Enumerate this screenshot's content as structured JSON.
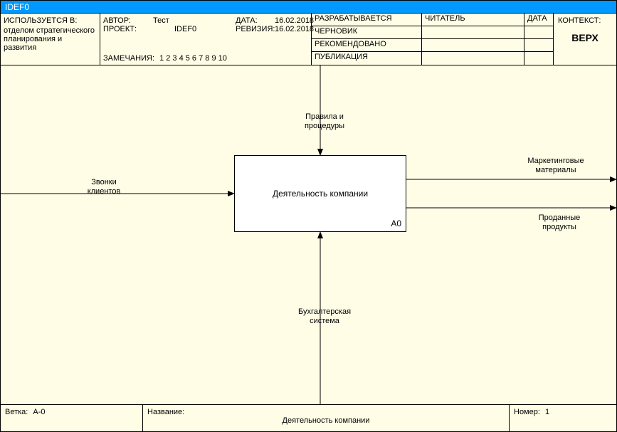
{
  "titlebar": "IDEF0",
  "header": {
    "used_at_label": "ИСПОЛЬЗУЕТСЯ В:",
    "used_at_value": "отделом стратегического планирования и развития",
    "author_label": "АВТОР:",
    "author_value": "Тест",
    "project_label": "ПРОЕКТ:",
    "project_value": "IDEF0",
    "date_label": "ДАТА:",
    "date_value": "16.02.2018",
    "rev_label": "РЕВИЗИЯ:",
    "rev_value": "16.02.2018",
    "notes_label": "ЗАМЕЧАНИЯ:",
    "notes_nums": "1  2  3  4  5  6  7  8  9  10",
    "status": {
      "working": "РАЗРАБАТЫВАЕТСЯ",
      "draft": "ЧЕРНОВИК",
      "recommended": "РЕКОМЕНДОВАНО",
      "publication": "ПУБЛИКАЦИЯ"
    },
    "reader_label": "ЧИТАТЕЛЬ",
    "reader_date_label": "ДАТА",
    "context_label": "КОНТЕКСТ:",
    "context_value": "ВЕРХ"
  },
  "diagram": {
    "activity_label": "Деятельность компании",
    "activity_node": "A0",
    "input_label": "Звонки\nклиентов",
    "control_label": "Правила и\nпроцедуры",
    "mechanism_label": "Бухгалтерская\nсистема",
    "output1_label": "Маркетинговые\nматериалы",
    "output2_label": "Проданные\nпродукты",
    "colors": {
      "bg": "#fffde6",
      "box_bg": "#ffffff",
      "line": "#000000"
    }
  },
  "footer": {
    "node_label": "Ветка:",
    "node_value": "A-0",
    "title_label": "Название:",
    "title_value": "Деятельность компании",
    "number_label": "Номер:",
    "number_value": "1"
  }
}
